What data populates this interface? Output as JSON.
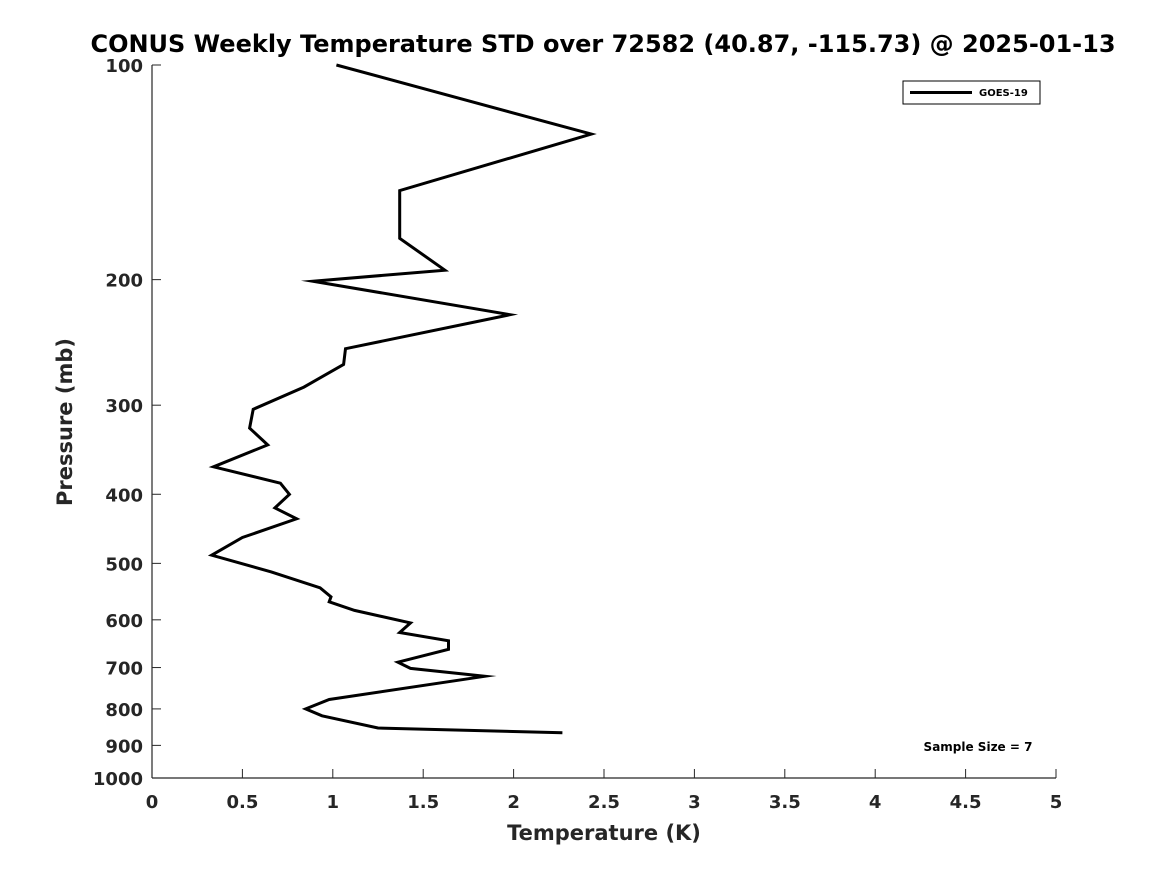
{
  "chart_data": {
    "type": "line",
    "title": "CONUS Weekly Temperature STD over 72582 (40.87, -115.73) @ 2025-01-13",
    "xlabel": "Temperature (K)",
    "ylabel": "Pressure (mb)",
    "xlim": [
      0,
      5
    ],
    "ylim": [
      100,
      1000
    ],
    "y_scale": "log",
    "y_reversed": true,
    "x_ticks": [
      "0",
      "0.5",
      "1",
      "1.5",
      "2",
      "2.5",
      "3",
      "3.5",
      "4",
      "4.5",
      "5"
    ],
    "y_ticks": [
      "100",
      "200",
      "300",
      "400",
      "500",
      "600",
      "700",
      "800",
      "900",
      "1000"
    ],
    "grid": false,
    "legend_position": "top-right",
    "series": [
      {
        "name": "GOES-19",
        "color": "#000000",
        "points": [
          [
            1.02,
            100
          ],
          [
            2.43,
            125
          ],
          [
            1.37,
            150
          ],
          [
            1.37,
            175
          ],
          [
            1.62,
            194
          ],
          [
            0.89,
            201
          ],
          [
            1.98,
            224
          ],
          [
            1.07,
            250
          ],
          [
            1.06,
            263
          ],
          [
            0.84,
            283
          ],
          [
            0.56,
            304
          ],
          [
            0.54,
            323
          ],
          [
            0.64,
            341
          ],
          [
            0.34,
            366
          ],
          [
            0.71,
            386
          ],
          [
            0.76,
            400
          ],
          [
            0.68,
            418
          ],
          [
            0.8,
            433
          ],
          [
            0.5,
            460
          ],
          [
            0.33,
            487
          ],
          [
            0.66,
            514
          ],
          [
            0.93,
            541
          ],
          [
            0.99,
            557
          ],
          [
            0.98,
            566
          ],
          [
            1.12,
            582
          ],
          [
            1.43,
            606
          ],
          [
            1.37,
            625
          ],
          [
            1.64,
            642
          ],
          [
            1.64,
            660
          ],
          [
            1.36,
            688
          ],
          [
            1.43,
            702
          ],
          [
            1.84,
            720
          ],
          [
            0.98,
            776
          ],
          [
            0.85,
            800
          ],
          [
            0.94,
            818
          ],
          [
            1.25,
            851
          ],
          [
            2.27,
            864
          ]
        ]
      }
    ],
    "annotations": [
      "Sample Size = 7"
    ]
  }
}
